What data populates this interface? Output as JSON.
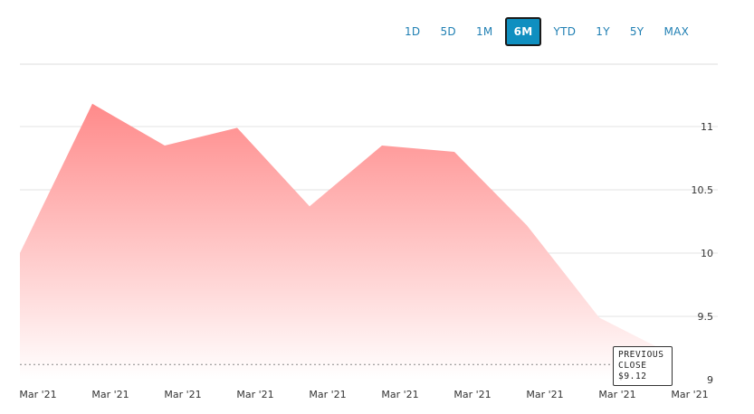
{
  "range_selector": {
    "options": [
      "1D",
      "5D",
      "1M",
      "6M",
      "YTD",
      "1Y",
      "5Y",
      "MAX"
    ],
    "selected": "6M"
  },
  "colors": {
    "area_top": "#ff8a8a",
    "area_bottom": "#ffffff",
    "accent": "#0f8fc0",
    "grid": "#e3e3e3"
  },
  "tooltip": {
    "line1": "PREVIOUS",
    "line2": "CLOSE",
    "value": "$9.12"
  },
  "chart_data": {
    "type": "area",
    "x": [
      "Mar '21",
      "Mar '21",
      "Mar '21",
      "Mar '21",
      "Mar '21",
      "Mar '21",
      "Mar '21",
      "Mar '21",
      "Mar '21",
      "Mar '21"
    ],
    "series": [
      {
        "values": [
          10.0,
          11.18,
          10.85,
          10.99,
          10.37,
          10.85,
          10.8,
          10.22,
          9.49,
          9.2
        ]
      }
    ],
    "y_ticks": [
      9,
      9.5,
      10,
      10.5,
      11
    ],
    "ylim": [
      8.97,
      11.5
    ],
    "reference_line": {
      "value": 9.12,
      "style": "dashed"
    },
    "y_axis_position": "right",
    "grid": true
  }
}
